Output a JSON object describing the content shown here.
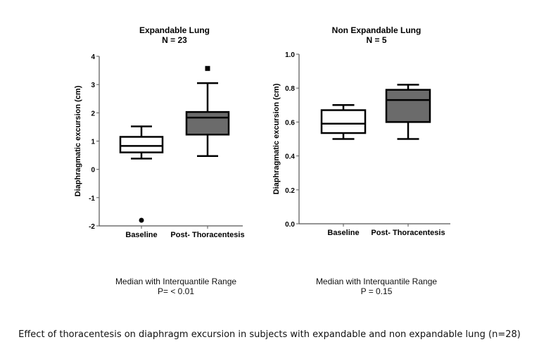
{
  "chart_data": [
    {
      "type": "box",
      "title": "Expandable Lung",
      "subtitle": "N = 23",
      "ylabel": "Diaphragmatic excursion (cm)",
      "xlabel": "",
      "ylim": [
        -2,
        4
      ],
      "yticks": [
        "-2",
        "-1",
        "0",
        "1",
        "2",
        "3",
        "4"
      ],
      "categories": [
        "Baseline",
        "Post- Thoracentesis"
      ],
      "boxes": [
        {
          "category": "Baseline",
          "whisker_low": 0.38,
          "q1": 0.6,
          "median": 0.83,
          "q3": 1.15,
          "whisker_high": 1.52,
          "outliers": [
            -1.8
          ],
          "fill": "#ffffff",
          "marker": "circle"
        },
        {
          "category": "Post- Thoracentesis",
          "whisker_low": 0.47,
          "q1": 1.23,
          "median": 1.83,
          "q3": 2.03,
          "whisker_high": 3.05,
          "outliers": [
            3.57
          ],
          "fill": "#6b6b6b",
          "marker": "square"
        }
      ],
      "note": "Median with Interquantile Range",
      "pvalue": "P= < 0.01"
    },
    {
      "type": "box",
      "title": "Non Expandable Lung",
      "subtitle": "N = 5",
      "ylabel": "Diaphragmatic excursion (cm)",
      "xlabel": "",
      "ylim": [
        0,
        1
      ],
      "yticks": [
        "0.0",
        "0.2",
        "0.4",
        "0.6",
        "0.8",
        "1.0"
      ],
      "categories": [
        "Baseline",
        "Post- Thoracentesis"
      ],
      "boxes": [
        {
          "category": "Baseline",
          "whisker_low": 0.5,
          "q1": 0.535,
          "median": 0.59,
          "q3": 0.67,
          "whisker_high": 0.7,
          "outliers": [],
          "fill": "#ffffff"
        },
        {
          "category": "Post- Thoracentesis",
          "whisker_low": 0.5,
          "q1": 0.6,
          "median": 0.73,
          "q3": 0.79,
          "whisker_high": 0.82,
          "outliers": [],
          "fill": "#6b6b6b"
        }
      ],
      "note": "Median with Interquantile Range",
      "pvalue": "P = 0.15"
    }
  ],
  "caption": "Effect of thoracentesis on diaphragm excursion in subjects with expandable and non expandable lung (n=28)"
}
